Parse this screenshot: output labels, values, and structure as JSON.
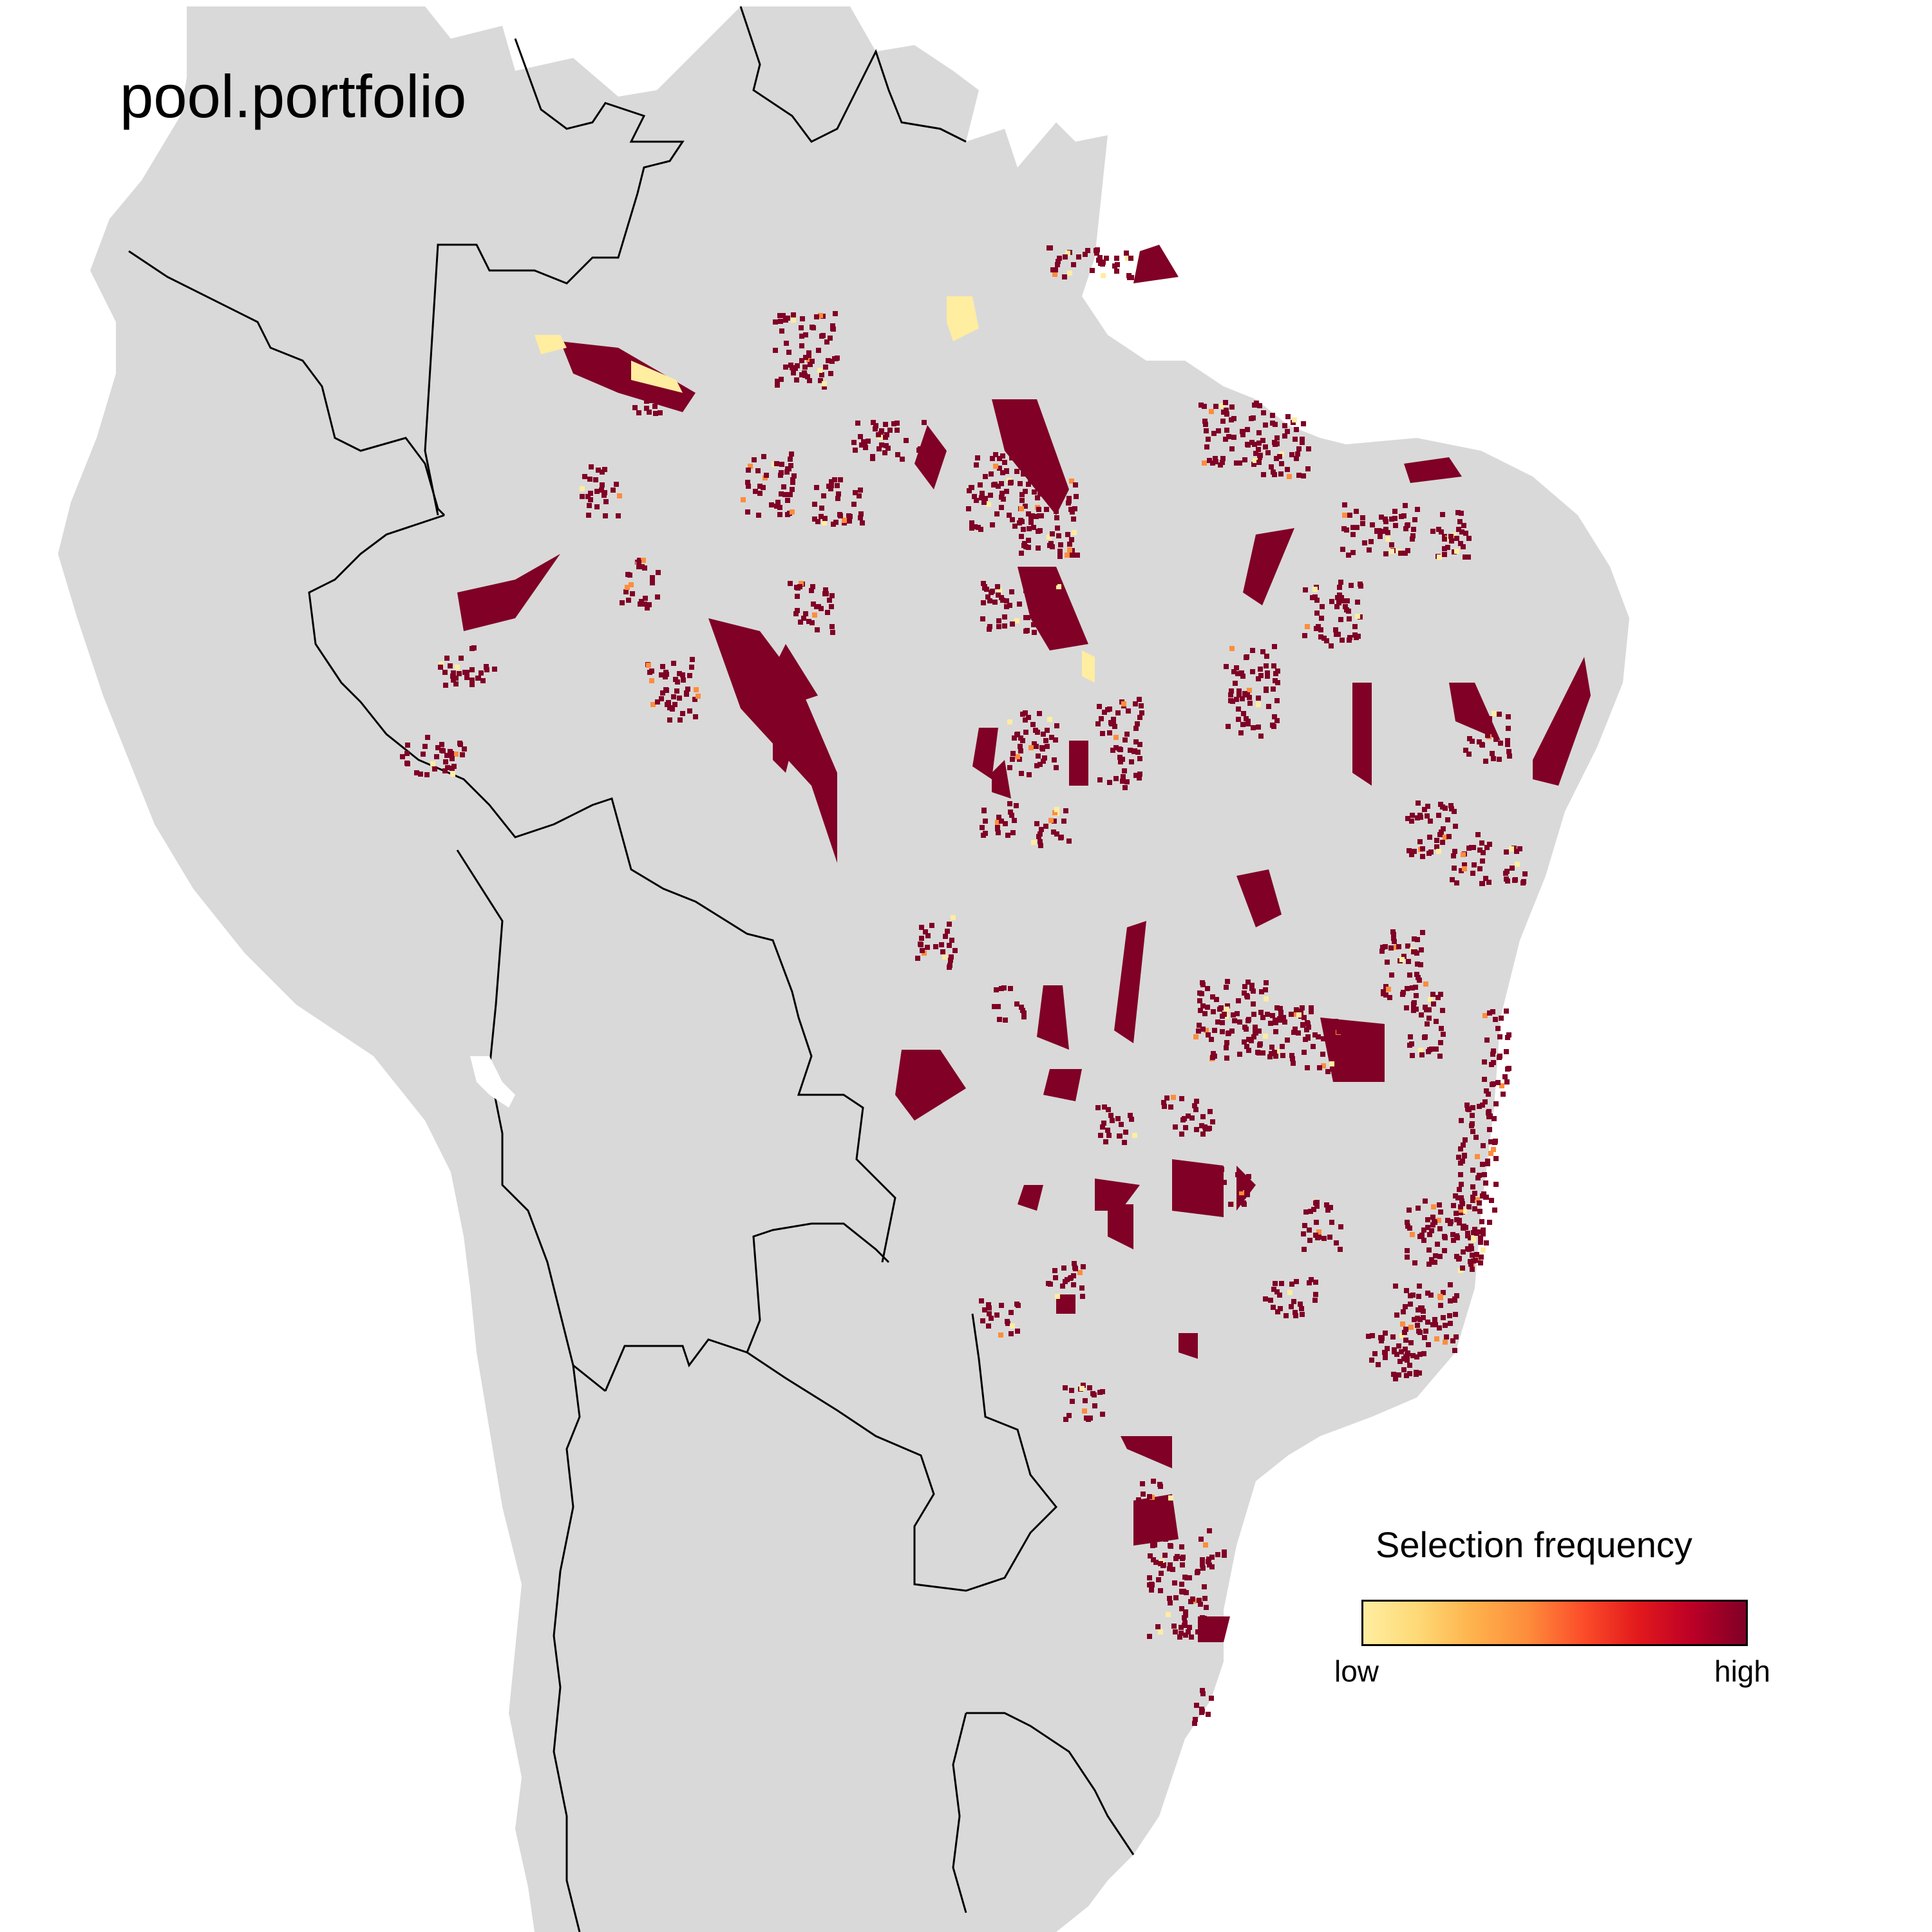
{
  "title": "pool.portfolio",
  "legend": {
    "title": "Selection frequency",
    "low_label": "low",
    "high_label": "high",
    "gradient_colors": [
      "#ffeda0",
      "#fed976",
      "#feb24c",
      "#fd8d3c",
      "#fc4e2a",
      "#e31a1c",
      "#bd0026",
      "#800026"
    ]
  },
  "colors": {
    "background": "#ffffff",
    "land": "#d9d9d9",
    "border": "#000000",
    "high": "#800026",
    "mid": "#fd8d3c",
    "low": "#ffeda0"
  }
}
